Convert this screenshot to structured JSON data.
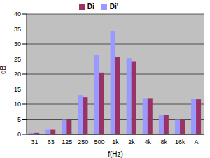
{
  "chart_data": {
    "type": "bar",
    "x_label": "f(Hz)",
    "y_label": "dB",
    "categories": [
      "31",
      "63",
      "125",
      "250",
      "500",
      "1k",
      "2k",
      "4k",
      "8k",
      "16k",
      "A"
    ],
    "series": [
      {
        "name": "Di'",
        "color": "#9999ff",
        "values": [
          0.5,
          1.5,
          5,
          13,
          26.5,
          34.3,
          25.3,
          12,
          6.5,
          5,
          11.8
        ]
      },
      {
        "name": "Di",
        "color": "#993366",
        "values": [
          0.5,
          1.5,
          4.8,
          12.3,
          20.5,
          25.8,
          24.3,
          12,
          6.5,
          5,
          11.6
        ]
      }
    ],
    "ylim": [
      0,
      40
    ],
    "yticks": [
      0,
      5,
      10,
      15,
      20,
      25,
      30,
      35,
      40
    ],
    "grid": true,
    "legend": "top"
  }
}
